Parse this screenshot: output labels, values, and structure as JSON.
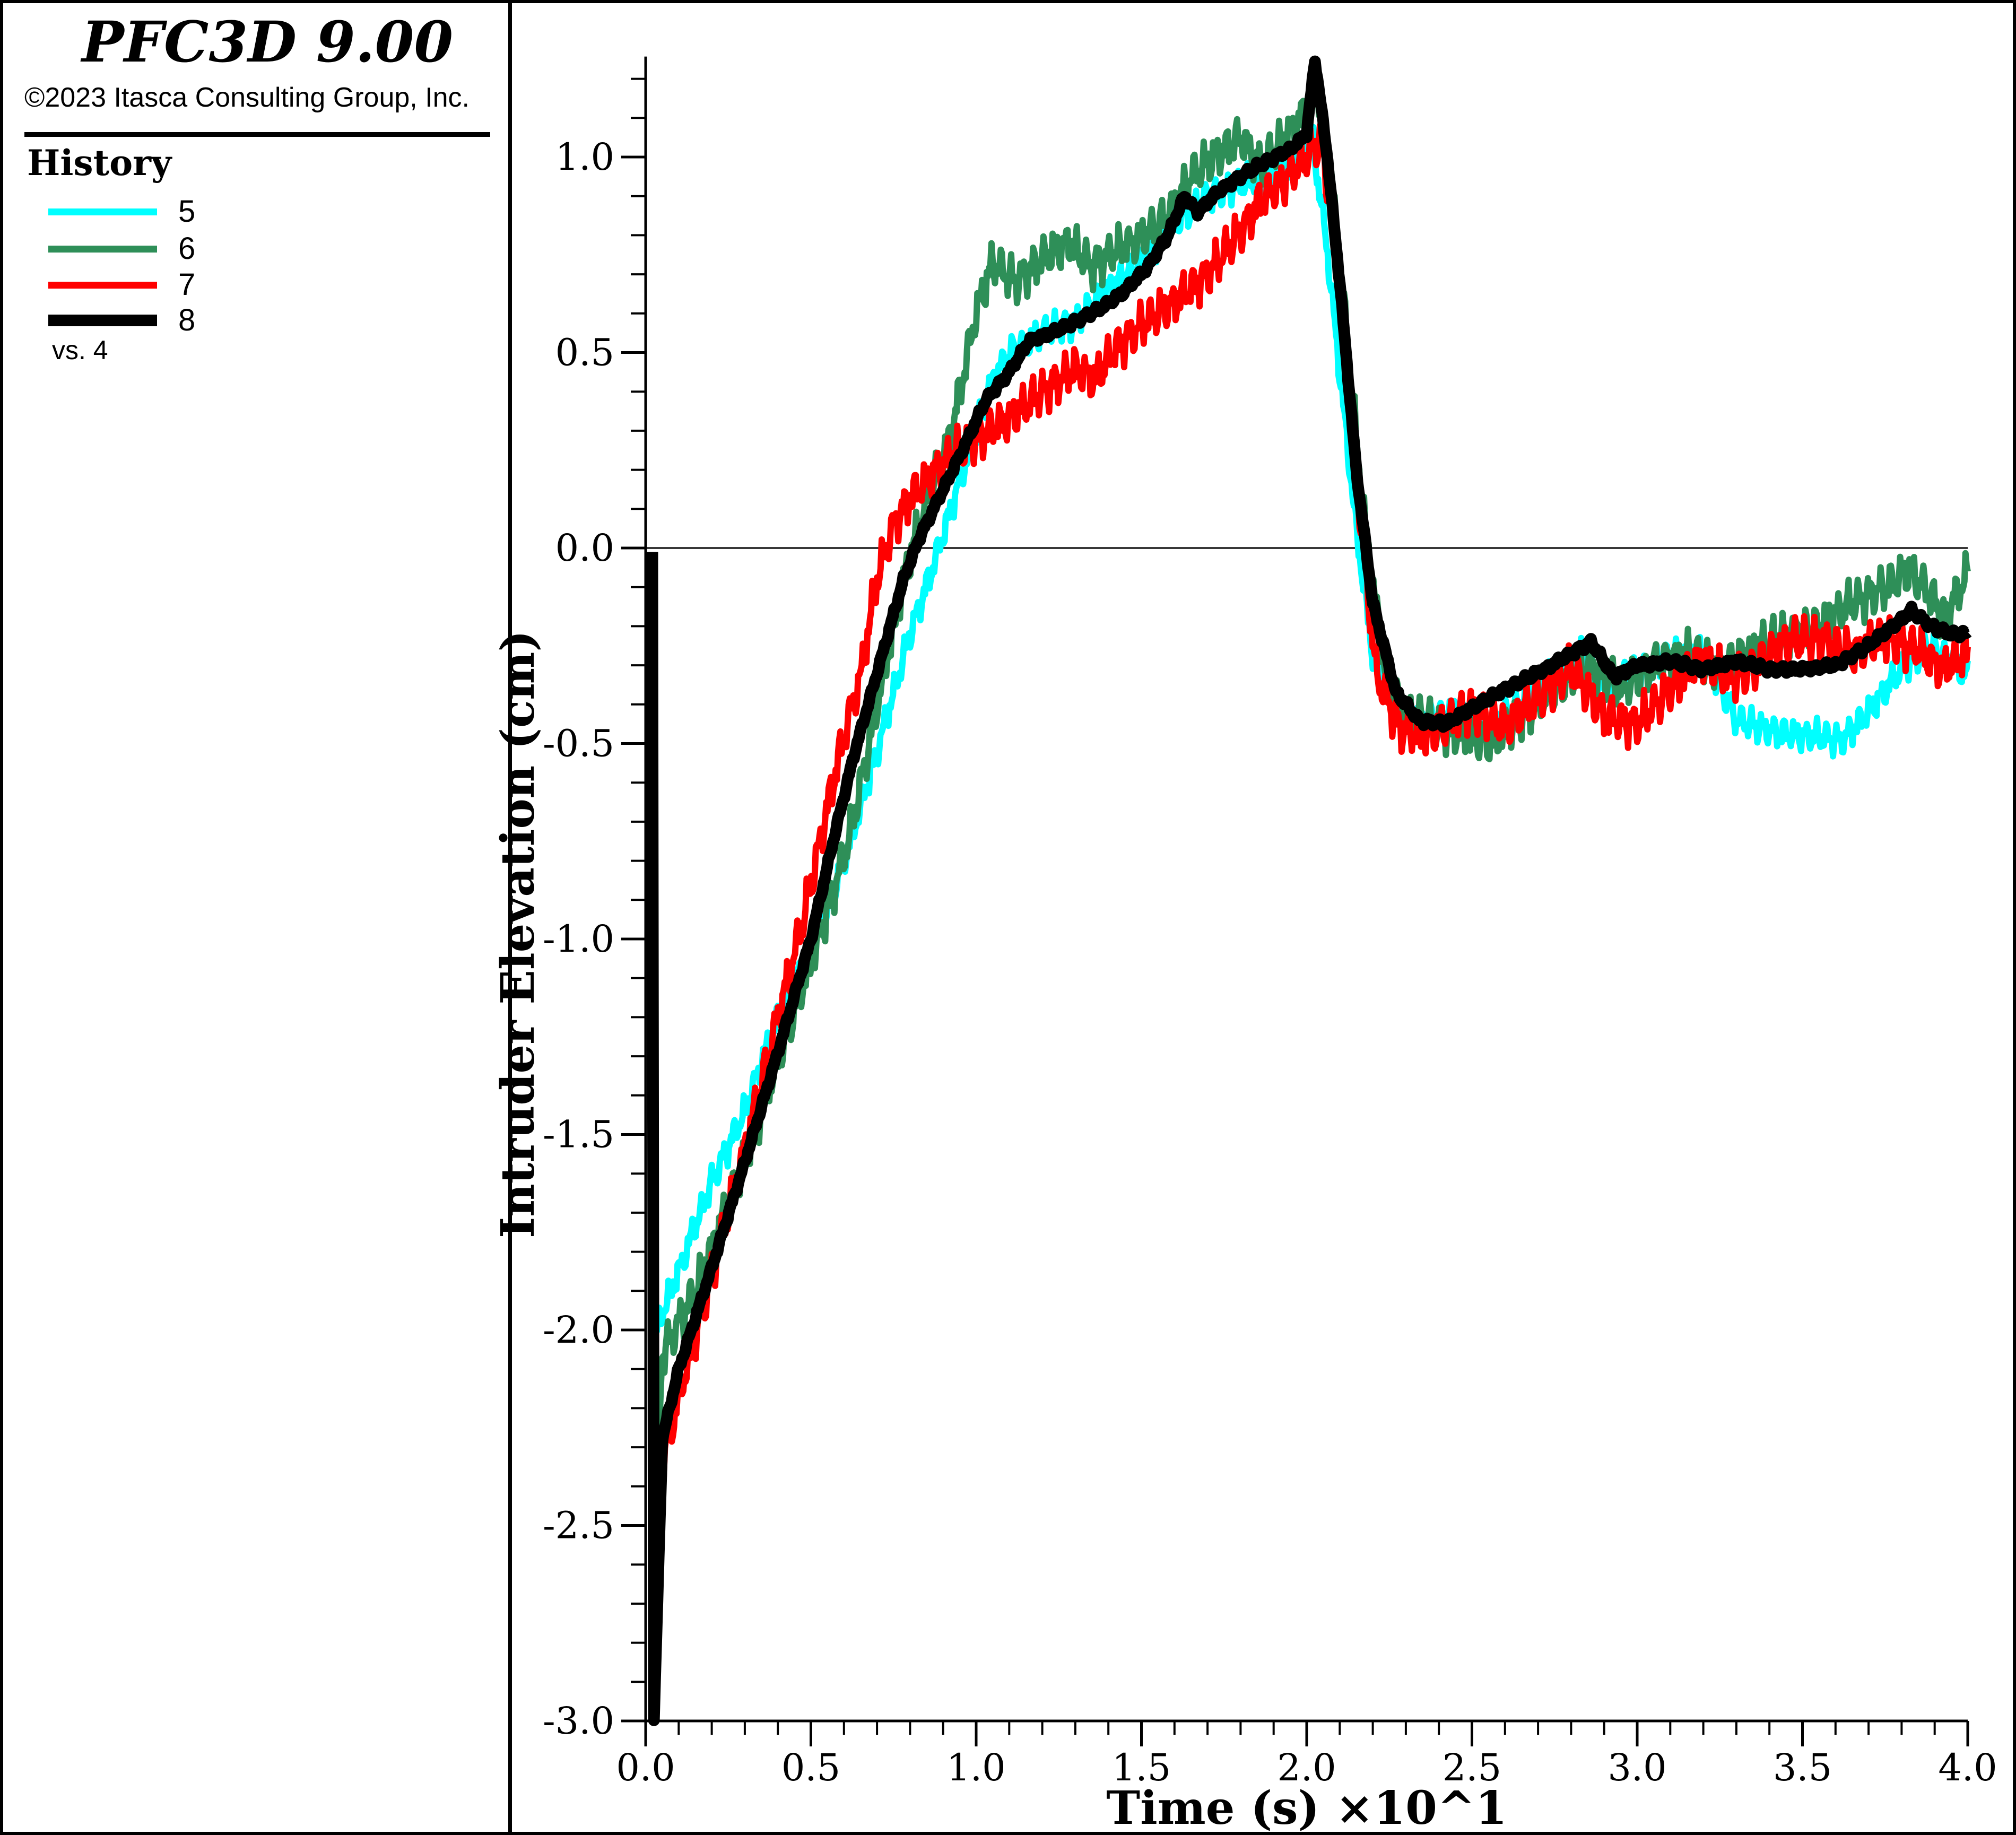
{
  "header": {
    "title": "PFC3D 9.00",
    "copyright": "©2023 Itasca Consulting Group, Inc."
  },
  "legend": {
    "title": "History",
    "note": "vs. 4",
    "items": [
      {
        "label": "5",
        "color": "#00FFFF",
        "thickness": 13
      },
      {
        "label": "6",
        "color": "#2E8F58",
        "thickness": 13
      },
      {
        "label": "7",
        "color": "#FF0000",
        "thickness": 13
      },
      {
        "label": "8",
        "color": "#000000",
        "thickness": 22
      }
    ]
  },
  "chart_data": {
    "type": "line",
    "title": "",
    "xlabel": "Time (s) ×10^1",
    "ylabel": "Intruder Elevation (cm)",
    "xlim": [
      0.0,
      4.0
    ],
    "ylim": [
      -3.0,
      1.25
    ],
    "grid": "zero-line-only",
    "zero_gridline_y": 0.0,
    "legend_position": "left-panel",
    "x_major_ticks": [
      0.0,
      0.5,
      1.0,
      1.5,
      2.0,
      2.5,
      3.0,
      3.5,
      4.0
    ],
    "x_tick_labels": [
      "0.0",
      "0.5",
      "1.0",
      "1.5",
      "2.0",
      "2.5",
      "3.0",
      "3.5",
      "4.0"
    ],
    "x_minor_step": 0.1,
    "y_major_ticks": [
      1.0,
      0.5,
      0.0,
      -0.5,
      -1.0,
      -1.5,
      -2.0,
      -2.5,
      -3.0
    ],
    "y_tick_labels": [
      "1.0",
      "0.5",
      "0.0",
      "-0.5",
      "-1.0",
      "-1.5",
      "-2.0",
      "-2.5",
      "-3.0"
    ],
    "y_minor_step": 0.1,
    "y_minor_top": 1.2,
    "series": [
      {
        "name": "5",
        "color": "#00FFFF",
        "stroke": 12,
        "noise": 0.05,
        "seed": 1,
        "points": [
          [
            0.02,
            -2.02
          ],
          [
            0.1,
            -1.85
          ],
          [
            0.2,
            -1.62
          ],
          [
            0.3,
            -1.44
          ],
          [
            0.4,
            -1.2
          ],
          [
            0.5,
            -1.03
          ],
          [
            0.6,
            -0.8
          ],
          [
            0.7,
            -0.52
          ],
          [
            0.8,
            -0.22
          ],
          [
            0.88,
            -0.02
          ],
          [
            0.95,
            0.17
          ],
          [
            1.0,
            0.3
          ],
          [
            1.05,
            0.43
          ],
          [
            1.1,
            0.5
          ],
          [
            1.2,
            0.55
          ],
          [
            1.3,
            0.58
          ],
          [
            1.4,
            0.66
          ],
          [
            1.5,
            0.73
          ],
          [
            1.6,
            0.83
          ],
          [
            1.7,
            0.9
          ],
          [
            1.8,
            0.93
          ],
          [
            1.9,
            0.96
          ],
          [
            1.97,
            1.0
          ],
          [
            2.02,
            1.03
          ],
          [
            2.06,
            0.78
          ],
          [
            2.1,
            0.45
          ],
          [
            2.15,
            0.05
          ],
          [
            2.2,
            -0.27
          ],
          [
            2.26,
            -0.41
          ],
          [
            2.35,
            -0.44
          ],
          [
            2.45,
            -0.42
          ],
          [
            2.55,
            -0.46
          ],
          [
            2.65,
            -0.4
          ],
          [
            2.75,
            -0.32
          ],
          [
            2.82,
            -0.26
          ],
          [
            2.9,
            -0.36
          ],
          [
            3.0,
            -0.31
          ],
          [
            3.1,
            -0.28
          ],
          [
            3.2,
            -0.26
          ],
          [
            3.3,
            -0.44
          ],
          [
            3.42,
            -0.47
          ],
          [
            3.52,
            -0.48
          ],
          [
            3.62,
            -0.49
          ],
          [
            3.7,
            -0.42
          ],
          [
            3.8,
            -0.31
          ],
          [
            3.88,
            -0.25
          ],
          [
            3.95,
            -0.29
          ],
          [
            4.0,
            -0.33
          ]
        ]
      },
      {
        "name": "6",
        "color": "#2E8F58",
        "stroke": 12,
        "noise": 0.07,
        "seed": 2,
        "points": [
          [
            0.03,
            -2.45
          ],
          [
            0.05,
            -2.06
          ],
          [
            0.15,
            -1.9
          ],
          [
            0.25,
            -1.68
          ],
          [
            0.35,
            -1.44
          ],
          [
            0.45,
            -1.18
          ],
          [
            0.55,
            -0.93
          ],
          [
            0.62,
            -0.73
          ],
          [
            0.7,
            -0.4
          ],
          [
            0.78,
            -0.08
          ],
          [
            0.85,
            0.12
          ],
          [
            0.92,
            0.28
          ],
          [
            1.0,
            0.6
          ],
          [
            1.05,
            0.73
          ],
          [
            1.12,
            0.68
          ],
          [
            1.2,
            0.74
          ],
          [
            1.28,
            0.78
          ],
          [
            1.35,
            0.72
          ],
          [
            1.42,
            0.76
          ],
          [
            1.5,
            0.79
          ],
          [
            1.58,
            0.85
          ],
          [
            1.65,
            0.95
          ],
          [
            1.72,
            1.0
          ],
          [
            1.8,
            1.05
          ],
          [
            1.86,
            0.98
          ],
          [
            1.92,
            1.03
          ],
          [
            2.0,
            1.12
          ],
          [
            2.03,
            1.2
          ],
          [
            2.07,
            0.98
          ],
          [
            2.12,
            0.55
          ],
          [
            2.17,
            0.1
          ],
          [
            2.23,
            -0.28
          ],
          [
            2.29,
            -0.42
          ],
          [
            2.38,
            -0.45
          ],
          [
            2.48,
            -0.48
          ],
          [
            2.56,
            -0.5
          ],
          [
            2.65,
            -0.43
          ],
          [
            2.75,
            -0.36
          ],
          [
            2.85,
            -0.3
          ],
          [
            2.95,
            -0.36
          ],
          [
            3.05,
            -0.3
          ],
          [
            3.15,
            -0.27
          ],
          [
            3.25,
            -0.31
          ],
          [
            3.35,
            -0.26
          ],
          [
            3.45,
            -0.22
          ],
          [
            3.55,
            -0.2
          ],
          [
            3.65,
            -0.14
          ],
          [
            3.75,
            -0.1
          ],
          [
            3.82,
            -0.06
          ],
          [
            3.88,
            -0.11
          ],
          [
            3.93,
            -0.18
          ],
          [
            3.97,
            -0.11
          ],
          [
            4.0,
            -0.07
          ]
        ]
      },
      {
        "name": "7",
        "color": "#FF0000",
        "stroke": 12,
        "noise": 0.07,
        "seed": 3,
        "points": [
          [
            0.02,
            -2.45
          ],
          [
            0.1,
            -2.17
          ],
          [
            0.2,
            -1.86
          ],
          [
            0.3,
            -1.54
          ],
          [
            0.4,
            -1.2
          ],
          [
            0.48,
            -0.94
          ],
          [
            0.55,
            -0.66
          ],
          [
            0.6,
            -0.48
          ],
          [
            0.65,
            -0.33
          ],
          [
            0.7,
            -0.08
          ],
          [
            0.75,
            0.06
          ],
          [
            0.8,
            0.13
          ],
          [
            0.88,
            0.2
          ],
          [
            0.95,
            0.25
          ],
          [
            1.0,
            0.28
          ],
          [
            1.1,
            0.33
          ],
          [
            1.2,
            0.4
          ],
          [
            1.3,
            0.46
          ],
          [
            1.36,
            0.43
          ],
          [
            1.42,
            0.51
          ],
          [
            1.5,
            0.57
          ],
          [
            1.6,
            0.63
          ],
          [
            1.7,
            0.7
          ],
          [
            1.8,
            0.81
          ],
          [
            1.86,
            0.89
          ],
          [
            1.92,
            0.93
          ],
          [
            2.0,
            1.0
          ],
          [
            2.04,
            1.04
          ],
          [
            2.08,
            0.84
          ],
          [
            2.12,
            0.5
          ],
          [
            2.16,
            0.1
          ],
          [
            2.21,
            -0.32
          ],
          [
            2.28,
            -0.46
          ],
          [
            2.36,
            -0.48
          ],
          [
            2.43,
            -0.45
          ],
          [
            2.5,
            -0.41
          ],
          [
            2.6,
            -0.46
          ],
          [
            2.7,
            -0.38
          ],
          [
            2.8,
            -0.31
          ],
          [
            2.9,
            -0.43
          ],
          [
            3.0,
            -0.45
          ],
          [
            3.1,
            -0.36
          ],
          [
            3.2,
            -0.28
          ],
          [
            3.28,
            -0.34
          ],
          [
            3.36,
            -0.3
          ],
          [
            3.45,
            -0.24
          ],
          [
            3.55,
            -0.23
          ],
          [
            3.65,
            -0.27
          ],
          [
            3.75,
            -0.23
          ],
          [
            3.85,
            -0.26
          ],
          [
            3.92,
            -0.31
          ],
          [
            4.0,
            -0.27
          ]
        ]
      },
      {
        "name": "8",
        "color": "#000000",
        "stroke": 22,
        "noise": 0.012,
        "seed": 4,
        "points": [
          [
            0.02,
            0.0
          ],
          [
            0.025,
            -3.0
          ],
          [
            0.05,
            -2.28
          ],
          [
            0.1,
            -2.1
          ],
          [
            0.2,
            -1.84
          ],
          [
            0.3,
            -1.57
          ],
          [
            0.4,
            -1.29
          ],
          [
            0.5,
            -1.0
          ],
          [
            0.57,
            -0.74
          ],
          [
            0.63,
            -0.53
          ],
          [
            0.68,
            -0.38
          ],
          [
            0.73,
            -0.23
          ],
          [
            0.78,
            -0.08
          ],
          [
            0.83,
            0.03
          ],
          [
            0.9,
            0.15
          ],
          [
            0.97,
            0.27
          ],
          [
            1.03,
            0.38
          ],
          [
            1.1,
            0.45
          ],
          [
            1.16,
            0.53
          ],
          [
            1.23,
            0.55
          ],
          [
            1.3,
            0.58
          ],
          [
            1.37,
            0.61
          ],
          [
            1.44,
            0.65
          ],
          [
            1.52,
            0.72
          ],
          [
            1.58,
            0.8
          ],
          [
            1.63,
            0.9
          ],
          [
            1.67,
            0.86
          ],
          [
            1.73,
            0.91
          ],
          [
            1.8,
            0.95
          ],
          [
            1.88,
            0.99
          ],
          [
            1.95,
            1.02
          ],
          [
            2.0,
            1.06
          ],
          [
            2.025,
            1.25
          ],
          [
            2.06,
            1.02
          ],
          [
            2.1,
            0.68
          ],
          [
            2.15,
            0.2
          ],
          [
            2.2,
            -0.14
          ],
          [
            2.27,
            -0.37
          ],
          [
            2.34,
            -0.44
          ],
          [
            2.42,
            -0.45
          ],
          [
            2.5,
            -0.41
          ],
          [
            2.58,
            -0.37
          ],
          [
            2.65,
            -0.34
          ],
          [
            2.72,
            -0.31
          ],
          [
            2.8,
            -0.27
          ],
          [
            2.86,
            -0.24
          ],
          [
            2.93,
            -0.33
          ],
          [
            3.0,
            -0.3
          ],
          [
            3.1,
            -0.29
          ],
          [
            3.2,
            -0.31
          ],
          [
            3.3,
            -0.29
          ],
          [
            3.4,
            -0.31
          ],
          [
            3.5,
            -0.31
          ],
          [
            3.6,
            -0.3
          ],
          [
            3.68,
            -0.26
          ],
          [
            3.76,
            -0.21
          ],
          [
            3.83,
            -0.16
          ],
          [
            3.89,
            -0.2
          ],
          [
            3.95,
            -0.22
          ],
          [
            4.0,
            -0.22
          ]
        ]
      }
    ]
  }
}
